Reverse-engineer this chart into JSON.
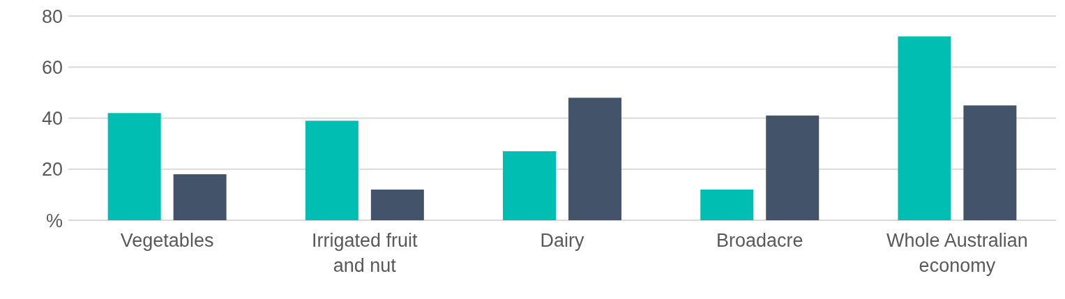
{
  "chart_data": {
    "type": "bar",
    "categories": [
      "Vegetables",
      "Irrigated fruit and nut",
      "Dairy",
      "Broadacre",
      "Whole Australian economy"
    ],
    "series": [
      {
        "color": "#00bfb2",
        "values": [
          42,
          39,
          27,
          12,
          72
        ]
      },
      {
        "color": "#435369",
        "values": [
          18,
          12,
          48,
          41,
          45
        ]
      }
    ],
    "ylim": [
      0,
      80
    ],
    "yticks": [
      {
        "value": 0,
        "label": "%"
      },
      20,
      40,
      60,
      80
    ],
    "grid": "y"
  }
}
